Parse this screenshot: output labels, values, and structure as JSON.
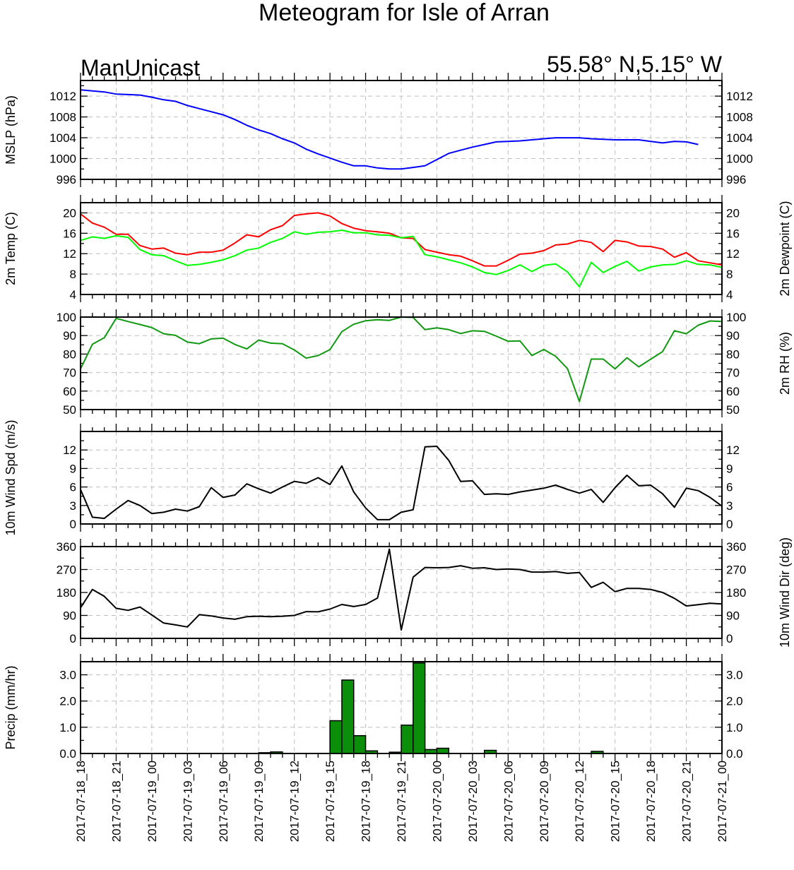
{
  "title": "Meteogram for Isle of Arran",
  "model": "ManUnicast",
  "location": "55.58° N,5.15° W",
  "x_labels": [
    "2017-07-18_18",
    "2017-07-18_21",
    "2017-07-19_00",
    "2017-07-19_03",
    "2017-07-19_06",
    "2017-07-19_09",
    "2017-07-19_12",
    "2017-07-19_15",
    "2017-07-19_18",
    "2017-07-19_21",
    "2017-07-20_00",
    "2017-07-20_03",
    "2017-07-20_06",
    "2017-07-20_09",
    "2017-07-20_12",
    "2017-07-20_15",
    "2017-07-20_18",
    "2017-07-20_21",
    "2017-07-21_00"
  ],
  "chart_data": [
    {
      "type": "line",
      "left_label": "MSLP (hPa)",
      "right_label": "",
      "ylim": [
        996,
        1015
      ],
      "yticks": [
        996,
        1000,
        1004,
        1008,
        1012
      ],
      "ytick_labels": [
        "996",
        "1000",
        "1004",
        "1008",
        "1012"
      ],
      "grid": true,
      "series": [
        {
          "color": "#0000ff",
          "values": [
            1013.2,
            1013.0,
            1012.8,
            1012.4,
            1012.3,
            1012.2,
            1011.8,
            1011.3,
            1011.0,
            1010.2,
            1009.6,
            1009.0,
            1008.4,
            1007.5,
            1006.4,
            1005.5,
            1004.8,
            1003.8,
            1003.0,
            1001.8,
            1000.9,
            1000.1,
            999.3,
            998.6,
            998.6,
            998.2,
            998.0,
            998.0,
            998.3,
            998.6,
            999.8,
            1001.0,
            1001.6,
            1002.2,
            1002.7,
            1003.2,
            1003.3,
            1003.4,
            1003.6,
            1003.8,
            1004.0,
            1004.0,
            1004.0,
            1003.8,
            1003.7,
            1003.6,
            1003.6,
            1003.6,
            1003.3,
            1003.0,
            1003.3,
            1003.2,
            1002.7
          ]
        }
      ]
    },
    {
      "type": "line",
      "left_label": "2m Temp (C)",
      "right_label": "2m Dewpoint (C)",
      "ylim": [
        4,
        22
      ],
      "yticks": [
        4,
        8,
        12,
        16,
        20
      ],
      "ytick_labels": [
        "4",
        "8",
        "12",
        "16",
        "20"
      ],
      "grid": true,
      "series": [
        {
          "color": "#ff0000",
          "values": [
            19.8,
            18.0,
            17.2,
            15.8,
            15.8,
            13.6,
            12.9,
            13.1,
            12.1,
            11.8,
            12.3,
            12.3,
            12.7,
            14.1,
            15.7,
            15.3,
            16.7,
            17.5,
            19.5,
            19.8,
            20.0,
            19.4,
            17.9,
            17.0,
            16.5,
            16.3,
            16.0,
            15.1,
            15.0,
            12.8,
            12.3,
            11.8,
            11.5,
            10.6,
            9.6,
            9.6,
            10.7,
            11.9,
            12.1,
            12.6,
            13.7,
            13.9,
            14.6,
            14.2,
            12.4,
            14.6,
            14.3,
            13.5,
            13.4,
            12.9,
            11.3,
            12.2,
            10.6,
            10.2,
            9.8
          ]
        },
        {
          "color": "#00ff00",
          "values": [
            14.6,
            15.3,
            15.0,
            15.5,
            15.2,
            12.8,
            11.8,
            11.6,
            10.6,
            9.7,
            9.9,
            10.3,
            10.8,
            11.6,
            12.7,
            13.1,
            14.2,
            15.0,
            16.3,
            15.8,
            16.2,
            16.3,
            16.6,
            16.1,
            16.1,
            15.7,
            15.6,
            15.1,
            15.4,
            11.8,
            11.4,
            10.8,
            10.2,
            9.4,
            8.3,
            7.9,
            8.7,
            9.8,
            8.5,
            9.7,
            10.0,
            8.4,
            5.5,
            10.3,
            8.3,
            9.5,
            10.5,
            8.6,
            9.4,
            9.8,
            9.9,
            10.6,
            9.9,
            9.8,
            9.3
          ]
        }
      ]
    },
    {
      "type": "line",
      "left_label": "",
      "right_label": "2m RH (%)",
      "ylim": [
        50,
        100
      ],
      "yticks": [
        50,
        60,
        70,
        80,
        90,
        100
      ],
      "ytick_labels": [
        "50",
        "60",
        "70",
        "80",
        "90",
        "100"
      ],
      "grid": true,
      "series": [
        {
          "color": "#119911",
          "values": [
            72.0,
            85.3,
            88.8,
            99.3,
            97.6,
            96.0,
            94.3,
            91.0,
            90.1,
            86.5,
            85.6,
            88.2,
            88.6,
            85.2,
            82.8,
            87.6,
            85.9,
            85.6,
            82.2,
            77.8,
            79.2,
            82.4,
            92.1,
            96.1,
            98.0,
            98.6,
            98.2,
            100.0,
            99.8,
            93.2,
            94.2,
            93.2,
            91.1,
            92.6,
            92.3,
            89.7,
            86.9,
            87.1,
            79.2,
            82.5,
            78.8,
            72.1,
            54.3,
            77.3,
            77.3,
            72.0,
            78.0,
            73.1,
            77.2,
            81.3,
            92.6,
            91.0,
            95.6,
            97.9,
            97.6
          ]
        }
      ]
    },
    {
      "type": "line",
      "left_label": "10m Wind Spd (m/s)",
      "right_label": "",
      "ylim": [
        0,
        15
      ],
      "yticks": [
        0,
        3,
        6,
        9,
        12
      ],
      "ytick_labels": [
        "0",
        "3",
        "6",
        "9",
        "12"
      ],
      "grid": true,
      "series": [
        {
          "color": "#000000",
          "values": [
            5.6,
            1.1,
            0.9,
            2.4,
            3.8,
            3.0,
            1.7,
            1.9,
            2.4,
            2.1,
            2.8,
            5.9,
            4.3,
            4.7,
            6.5,
            5.7,
            5.0,
            6.0,
            6.9,
            6.6,
            7.5,
            6.4,
            9.4,
            5.2,
            2.6,
            0.7,
            0.7,
            1.9,
            2.3,
            12.5,
            12.6,
            10.3,
            6.9,
            7.0,
            4.8,
            4.9,
            4.8,
            5.2,
            5.5,
            5.8,
            6.3,
            5.6,
            5.0,
            5.6,
            3.5,
            5.9,
            7.9,
            6.2,
            6.3,
            4.9,
            2.7,
            5.8,
            5.4,
            4.3,
            2.9
          ]
        }
      ]
    },
    {
      "type": "line",
      "left_label": "",
      "right_label": "10m Wind Dir (deg)",
      "ylim": [
        0,
        360
      ],
      "yticks": [
        0,
        90,
        180,
        270,
        360
      ],
      "ytick_labels": [
        "0",
        "90",
        "180",
        "270",
        "360"
      ],
      "grid": true,
      "series": [
        {
          "color": "#000000",
          "values": [
            120,
            192,
            165,
            118,
            110,
            123,
            92,
            60,
            53,
            45,
            93,
            88,
            80,
            75,
            85,
            87,
            85,
            87,
            90,
            105,
            104,
            115,
            133,
            125,
            133,
            158,
            350,
            33,
            240,
            278,
            277,
            278,
            285,
            275,
            277,
            270,
            272,
            270,
            260,
            260,
            262,
            255,
            258,
            200,
            220,
            183,
            196,
            196,
            192,
            180,
            157,
            127,
            132,
            138,
            135
          ]
        }
      ]
    },
    {
      "type": "bar",
      "left_label": "Precip (mm/hr)",
      "right_label": "",
      "ylim": [
        0,
        3.5
      ],
      "yticks": [
        0,
        1,
        2,
        3
      ],
      "ytick_labels": [
        "0.0",
        "1.0",
        "2.0",
        "3.0"
      ],
      "grid": true,
      "bars": [
        {
          "start": 15,
          "value": 0.03
        },
        {
          "start": 16,
          "value": 0.06
        },
        {
          "start": 21,
          "value": 1.25
        },
        {
          "start": 22,
          "value": 2.8
        },
        {
          "start": 23,
          "value": 0.68
        },
        {
          "start": 24,
          "value": 0.1
        },
        {
          "start": 26,
          "value": 0.05
        },
        {
          "start": 27,
          "value": 1.08
        },
        {
          "start": 28,
          "value": 3.45
        },
        {
          "start": 29,
          "value": 0.15
        },
        {
          "start": 30,
          "value": 0.2
        },
        {
          "start": 34,
          "value": 0.12
        },
        {
          "start": 43,
          "value": 0.08
        }
      ]
    }
  ]
}
